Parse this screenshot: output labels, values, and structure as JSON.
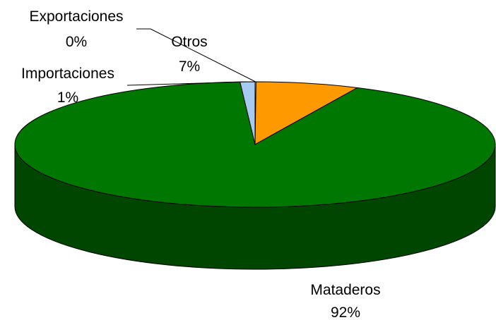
{
  "chart_data": {
    "type": "pie",
    "style": "3d",
    "title": "",
    "categories": [
      "Mataderos",
      "Importaciones",
      "Exportaciones",
      "Otros"
    ],
    "values": [
      92,
      1,
      0,
      7
    ],
    "value_labels": [
      "92%",
      "1%",
      "0%",
      "7%"
    ],
    "colors": [
      "#007700",
      "#a6caf0",
      "#ffffff",
      "#ff9900"
    ],
    "legend": "none"
  }
}
